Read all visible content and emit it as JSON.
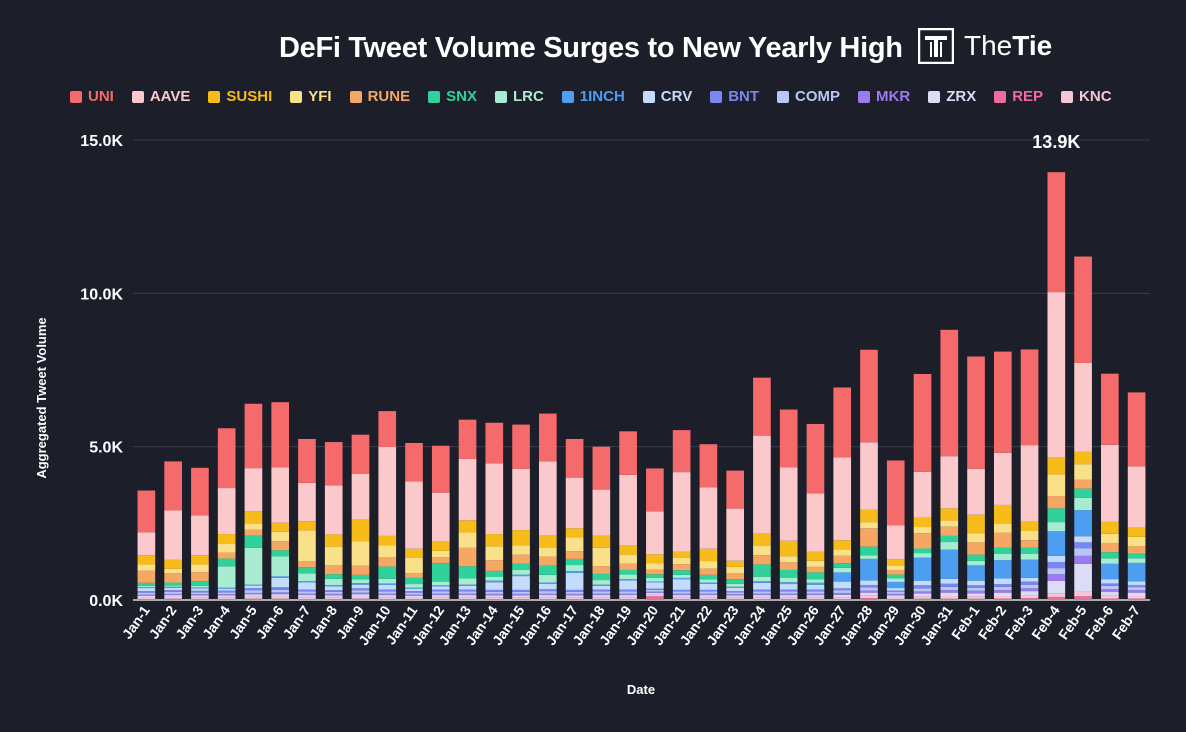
{
  "header": {
    "title": "DeFi Tweet Volume Surges to New Yearly High",
    "brand_prefix": "The",
    "brand_suffix": "Tie"
  },
  "chart_data": {
    "type": "bar",
    "stacked": true,
    "title": "DeFi Tweet Volume Surges to New Yearly High",
    "xlabel": "Date",
    "ylabel": "Aggregated Tweet Volume",
    "ylim": [
      0,
      15000
    ],
    "yticks": [
      "0.0K",
      "5.0K",
      "10.0K",
      "15.0K"
    ],
    "ytick_values": [
      0,
      5000,
      10000,
      15000
    ],
    "grid": true,
    "legend_position": "top",
    "annotations": [
      {
        "category": "Feb-4",
        "text": "13.9K"
      }
    ],
    "categories": [
      "Jan-1",
      "Jan-2",
      "Jan-3",
      "Jan-4",
      "Jan-5",
      "Jan-6",
      "Jan-7",
      "Jan-8",
      "Jan-9",
      "Jan-10",
      "Jan-11",
      "Jan-12",
      "Jan-13",
      "Jan-14",
      "Jan-15",
      "Jan-16",
      "Jan-17",
      "Jan-18",
      "Jan-19",
      "Jan-20",
      "Jan-21",
      "Jan-22",
      "Jan-23",
      "Jan-24",
      "Jan-25",
      "Jan-26",
      "Jan-27",
      "Jan-28",
      "Jan-29",
      "Jan-30",
      "Jan-31",
      "Feb-1",
      "Feb-2",
      "Feb-3",
      "Feb-4",
      "Feb-5",
      "Feb-6",
      "Feb-7"
    ],
    "series": [
      {
        "name": "REP",
        "color": "#f06a9e",
        "values": [
          30,
          40,
          30,
          30,
          40,
          40,
          30,
          30,
          40,
          30,
          30,
          30,
          30,
          30,
          30,
          30,
          30,
          30,
          30,
          120,
          30,
          30,
          30,
          30,
          30,
          30,
          30,
          60,
          30,
          40,
          40,
          40,
          50,
          60,
          100,
          120,
          50,
          50
        ]
      },
      {
        "name": "KNC",
        "color": "#f5c6d6",
        "values": [
          50,
          60,
          60,
          60,
          70,
          70,
          60,
          60,
          60,
          60,
          50,
          60,
          60,
          60,
          60,
          60,
          60,
          60,
          60,
          50,
          60,
          60,
          60,
          60,
          60,
          60,
          60,
          80,
          50,
          80,
          90,
          80,
          80,
          100,
          120,
          160,
          90,
          80
        ]
      },
      {
        "name": "ZRX",
        "color": "#dcdcf6",
        "values": [
          60,
          60,
          60,
          60,
          70,
          80,
          70,
          60,
          80,
          70,
          60,
          70,
          70,
          60,
          60,
          70,
          60,
          70,
          70,
          60,
          70,
          70,
          60,
          70,
          70,
          70,
          80,
          100,
          70,
          90,
          110,
          100,
          110,
          130,
          400,
          900,
          120,
          110
        ]
      },
      {
        "name": "MKR",
        "color": "#9b7bf0",
        "values": [
          40,
          40,
          40,
          40,
          50,
          60,
          50,
          50,
          60,
          50,
          40,
          50,
          50,
          50,
          50,
          50,
          50,
          50,
          50,
          40,
          50,
          50,
          40,
          50,
          50,
          50,
          60,
          70,
          50,
          70,
          80,
          80,
          80,
          90,
          220,
          260,
          90,
          80
        ]
      },
      {
        "name": "COMP",
        "color": "#b8c8f6",
        "values": [
          60,
          70,
          60,
          60,
          80,
          80,
          70,
          70,
          80,
          70,
          60,
          70,
          70,
          70,
          70,
          80,
          70,
          70,
          70,
          60,
          70,
          70,
          60,
          70,
          70,
          70,
          80,
          100,
          60,
          100,
          110,
          100,
          110,
          120,
          200,
          240,
          110,
          100
        ]
      },
      {
        "name": "BNT",
        "color": "#7b86f0",
        "values": [
          50,
          50,
          50,
          60,
          80,
          90,
          60,
          50,
          60,
          60,
          50,
          60,
          60,
          60,
          60,
          60,
          60,
          60,
          60,
          40,
          50,
          50,
          40,
          60,
          60,
          60,
          70,
          80,
          50,
          100,
          100,
          80,
          90,
          100,
          200,
          200,
          80,
          70
        ]
      },
      {
        "name": "CRV",
        "color": "#c4dcfb",
        "values": [
          100,
          80,
          80,
          60,
          80,
          300,
          230,
          120,
          120,
          150,
          80,
          100,
          120,
          250,
          450,
          180,
          550,
          120,
          300,
          200,
          350,
          200,
          110,
          220,
          180,
          150,
          220,
          150,
          80,
          150,
          160,
          150,
          180,
          120,
          200,
          200,
          140,
          120
        ]
      },
      {
        "name": "1INCH",
        "color": "#4d9ef0",
        "values": [
          30,
          30,
          30,
          30,
          30,
          50,
          50,
          50,
          50,
          50,
          30,
          40,
          40,
          50,
          50,
          40,
          60,
          40,
          40,
          30,
          40,
          40,
          30,
          50,
          60,
          70,
          300,
          700,
          200,
          750,
          950,
          500,
          600,
          600,
          800,
          850,
          500,
          600
        ]
      },
      {
        "name": "LRC",
        "color": "#a7ecd1",
        "values": [
          40,
          40,
          50,
          700,
          1200,
          650,
          250,
          200,
          120,
          150,
          120,
          120,
          200,
          120,
          150,
          250,
          200,
          150,
          150,
          120,
          100,
          100,
          100,
          150,
          150,
          120,
          150,
          120,
          120,
          150,
          250,
          150,
          200,
          180,
          300,
          400,
          180,
          150
        ]
      },
      {
        "name": "SNX",
        "color": "#2ed29a",
        "values": [
          100,
          100,
          150,
          250,
          400,
          200,
          200,
          150,
          150,
          400,
          200,
          600,
          400,
          200,
          200,
          300,
          200,
          200,
          150,
          120,
          150,
          150,
          150,
          400,
          250,
          220,
          150,
          280,
          120,
          150,
          200,
          200,
          200,
          200,
          450,
          300,
          200,
          150
        ]
      },
      {
        "name": "RUNE",
        "color": "#f5a864",
        "values": [
          400,
          300,
          300,
          200,
          200,
          300,
          200,
          300,
          300,
          300,
          150,
          200,
          600,
          350,
          300,
          300,
          250,
          250,
          200,
          150,
          200,
          200,
          200,
          300,
          250,
          180,
          250,
          600,
          150,
          500,
          300,
          400,
          500,
          250,
          400,
          300,
          300,
          250
        ]
      },
      {
        "name": "YFI",
        "color": "#fbe08a",
        "values": [
          200,
          150,
          250,
          300,
          200,
          300,
          1000,
          600,
          800,
          400,
          500,
          200,
          500,
          450,
          300,
          300,
          450,
          600,
          300,
          200,
          200,
          250,
          200,
          300,
          200,
          200,
          200,
          200,
          150,
          200,
          200,
          300,
          300,
          300,
          700,
          500,
          300,
          300
        ]
      },
      {
        "name": "SUSHI",
        "color": "#f7bc1a",
        "values": [
          300,
          300,
          300,
          300,
          400,
          300,
          300,
          400,
          700,
          300,
          300,
          300,
          400,
          400,
          500,
          400,
          300,
          400,
          300,
          300,
          200,
          400,
          200,
          400,
          500,
          300,
          300,
          400,
          200,
          300,
          400,
          600,
          600,
          300,
          550,
          400,
          400,
          300
        ]
      },
      {
        "name": "AAVE",
        "color": "#fbc9cb",
        "values": [
          750,
          1600,
          1300,
          1500,
          1400,
          1800,
          1250,
          1600,
          1500,
          2900,
          2200,
          1600,
          2000,
          2300,
          2000,
          2400,
          1650,
          1500,
          2300,
          1400,
          2600,
          2000,
          1700,
          3200,
          2400,
          1900,
          2700,
          2200,
          1100,
          1500,
          1700,
          1500,
          1700,
          2500,
          5400,
          2900,
          2500,
          2000
        ]
      },
      {
        "name": "UNI",
        "color": "#f56a6a",
        "values": [
          1360,
          1600,
          1550,
          1950,
          2100,
          2130,
          1430,
          1410,
          1270,
          1170,
          1250,
          1530,
          1280,
          1330,
          1440,
          1560,
          1260,
          1400,
          1420,
          1400,
          1370,
          1410,
          1240,
          1890,
          1880,
          2260,
          2280,
          3020,
          2120,
          3190,
          4120,
          3660,
          3300,
          3120,
          3910,
          3470,
          2320,
          2410
        ]
      }
    ]
  }
}
